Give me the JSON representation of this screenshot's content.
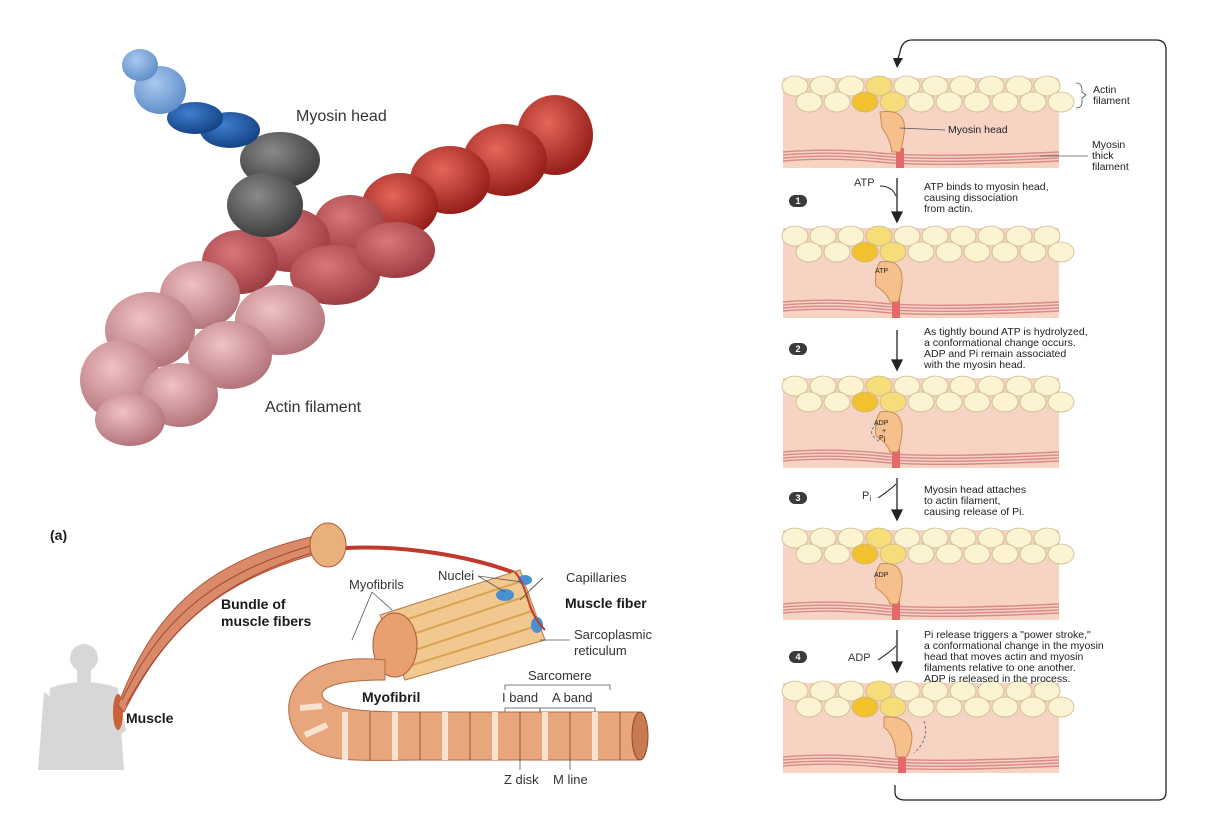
{
  "molecular_model": {
    "myosin_head_label": "Myosin head",
    "actin_filament_label": "Actin filament"
  },
  "muscle_anatomy": {
    "panel_label": "(a)",
    "muscle": "Muscle",
    "bundle_line1": "Bundle of",
    "bundle_line2": "muscle fibers",
    "myofibrils": "Myofibrils",
    "nuclei": "Nuclei",
    "capillaries": "Capillaries",
    "muscle_fiber": "Muscle fiber",
    "sarcoplasmic_line1": "Sarcoplasmic",
    "sarcoplasmic_line2": "reticulum",
    "myofibril": "Myofibril",
    "sarcomere": "Sarcomere",
    "i_band": "I band",
    "a_band": "A band",
    "z_disk": "Z disk",
    "m_line": "M line"
  },
  "cross_bridge_cycle": {
    "actin_label_line1": "Actin",
    "actin_label_line2": "filament",
    "myosin_head_label": "Myosin head",
    "thick_line1": "Myosin",
    "thick_line2": "thick",
    "thick_line3": "filament",
    "head_tags": {
      "atp": "ATP",
      "adp_top": "ADP",
      "adp_plus": "+",
      "adp_pi": "P",
      "adp_pi_sub": "i",
      "adp": "ADP"
    },
    "steps": [
      {
        "number": "1",
        "reagent": "ATP",
        "reagent_sub": "",
        "text": "ATP binds to myosin head,\ncausing dissociation\nfrom actin."
      },
      {
        "number": "2",
        "reagent": "",
        "reagent_sub": "",
        "text": "As tightly bound ATP is hydrolyzed,\na conformational change occurs.\nADP and Pi remain associated\nwith the myosin head."
      },
      {
        "number": "3",
        "reagent": "P",
        "reagent_sub": "i",
        "text": "Myosin head attaches\nto actin filament,\ncausing release of Pi."
      },
      {
        "number": "4",
        "reagent": "ADP",
        "reagent_sub": "",
        "text": "Pi release triggers a \"power stroke,\"\na conformational change in the myosin\nhead that moves actin and myosin\nfilaments relative to one another.\nADP is released in the process."
      }
    ]
  },
  "colors": {
    "actin_bead": "#fbf3d2",
    "actin_bead_stroke": "#c9b98a",
    "actin_highlight": "#f2c12e",
    "actin_highlight_light": "#f7dc7a",
    "panel_bg": "#f6d3c2",
    "myosin_head": "#f5c08c",
    "thick_filament": "#d98a8a",
    "red_dark": "#b8281f",
    "red_mid": "#d5574d",
    "red_light": "#e9a3a3",
    "blue_dark": "#1d5aa8",
    "blue_light": "#7aa7dc",
    "grey": "#555555"
  }
}
